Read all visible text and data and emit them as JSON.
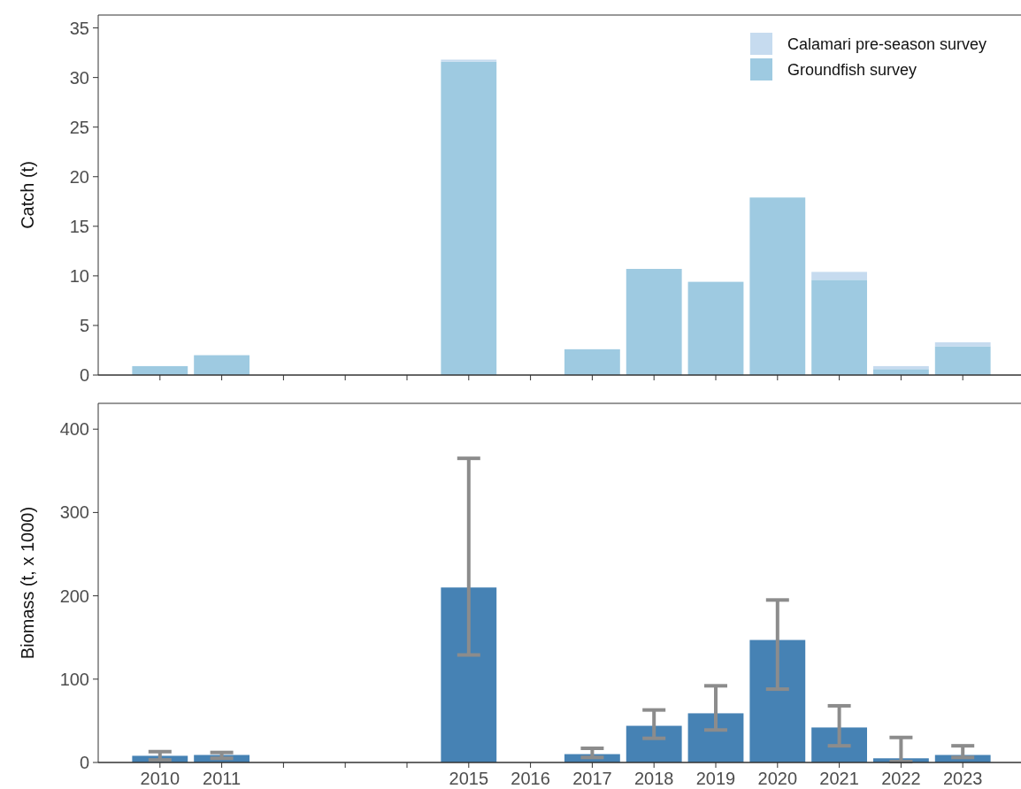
{
  "chart_data": [
    {
      "type": "bar",
      "stacked": true,
      "ylabel": "Catch (t)",
      "categories": [
        "2010",
        "2011",
        null,
        null,
        null,
        "2015",
        "2016",
        "2017",
        "2018",
        "2019",
        "2020",
        "2021",
        "2022",
        "2023"
      ],
      "ylim": [
        0,
        36.3
      ],
      "yticks": [
        0,
        5,
        10,
        15,
        20,
        25,
        30,
        35
      ],
      "tick_labels": "y",
      "legend": "top right",
      "series": [
        {
          "name": "Groundfish survey",
          "color": "#9ecae1",
          "values": [
            0.9,
            2.0,
            null,
            null,
            null,
            31.6,
            null,
            2.6,
            10.7,
            9.4,
            17.9,
            9.6,
            0.6,
            2.9
          ]
        },
        {
          "name": "Calamari pre-season survey",
          "color": "#c6dbef",
          "values": [
            null,
            null,
            null,
            null,
            null,
            0.2,
            null,
            null,
            null,
            null,
            null,
            0.8,
            0.3,
            0.4
          ]
        }
      ]
    },
    {
      "type": "bar",
      "ylabel": "Biomass (t, x 1000)",
      "categories": [
        "2010",
        "2011",
        null,
        null,
        null,
        "2015",
        "2016",
        "2017",
        "2018",
        "2019",
        "2020",
        "2021",
        "2022",
        "2023"
      ],
      "ylim": [
        0,
        431
      ],
      "yticks": [
        0,
        100,
        200,
        300,
        400
      ],
      "series": [
        {
          "color": "#4682b4",
          "values": [
            8,
            9,
            null,
            null,
            null,
            210,
            null,
            10,
            44,
            59,
            147,
            42,
            5,
            9
          ],
          "errors": [
            [
              3,
              13
            ],
            [
              5,
              12
            ],
            null,
            null,
            null,
            [
              129,
              365
            ],
            null,
            [
              6,
              17
            ],
            [
              29,
              63
            ],
            [
              39,
              92
            ],
            [
              88,
              195
            ],
            [
              20,
              68
            ],
            [
              1,
              30
            ],
            [
              6,
              20
            ]
          ]
        }
      ]
    }
  ]
}
